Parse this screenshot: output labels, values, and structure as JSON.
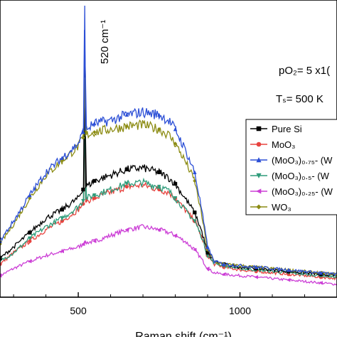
{
  "chart_data": {
    "type": "line",
    "xlabel": "Raman shift (cm⁻¹)",
    "ylabel": "",
    "xlim": [
      258,
      1300
    ],
    "ylim": [
      0,
      100
    ],
    "x_ticks": [
      500,
      1000
    ],
    "x_tick_labels": [
      "500",
      "1000"
    ],
    "peak_label": "520 cm⁻¹",
    "annotations": {
      "po2": "pO₂= 5 x1(",
      "ts": "Tₛ= 500 K"
    },
    "series": [
      {
        "name": "Pure Si",
        "color": "#000000",
        "marker": "square",
        "peak": 83,
        "x": [
          258,
          300,
          350,
          400,
          450,
          500,
          515,
          525,
          550,
          600,
          650,
          700,
          750,
          780,
          800,
          830,
          860,
          880,
          900,
          920,
          950,
          1000,
          1050,
          1100,
          1150,
          1200,
          1250,
          1300
        ],
        "y": [
          12,
          16,
          21,
          26,
          29,
          33,
          36,
          37,
          39,
          41,
          43,
          43.5,
          42,
          40,
          38,
          33,
          28,
          22,
          14,
          11,
          10,
          9,
          8.5,
          8,
          7.5,
          7,
          6.5,
          6
        ]
      },
      {
        "name": "MoO₃",
        "color": "#e8433f",
        "marker": "circle",
        "peak": 65,
        "x": [
          258,
          300,
          350,
          400,
          450,
          500,
          515,
          525,
          550,
          600,
          650,
          700,
          750,
          780,
          800,
          830,
          860,
          880,
          900,
          920,
          950,
          1000,
          1050,
          1100,
          1150,
          1200,
          1250,
          1300
        ],
        "y": [
          10,
          14,
          18,
          22,
          25,
          29,
          31,
          32,
          33,
          35,
          37,
          37.5,
          36,
          35,
          33,
          29,
          25,
          20,
          13,
          10,
          9,
          8,
          7.5,
          7,
          6.5,
          6,
          5.5,
          5
        ]
      },
      {
        "name": "(MoO₃)₀.₇₅- (W",
        "color": "#2c4fd6",
        "marker": "triangle-up",
        "peak": 100,
        "x": [
          258,
          300,
          350,
          400,
          450,
          500,
          515,
          525,
          550,
          600,
          650,
          700,
          750,
          780,
          800,
          830,
          860,
          880,
          900,
          920,
          950,
          1000,
          1050,
          1100,
          1150,
          1200,
          1250,
          1300
        ],
        "y": [
          18,
          25,
          34,
          42,
          47,
          52,
          56,
          57,
          59,
          60,
          62,
          63,
          62,
          60,
          57,
          50,
          42,
          30,
          16,
          11,
          10,
          9.5,
          9,
          8.5,
          8,
          7.5,
          7,
          6.5
        ]
      },
      {
        "name": "(MoO₃)₀.₅- (W",
        "color": "#2e9c7a",
        "marker": "triangle-down",
        "peak": 66,
        "x": [
          258,
          300,
          350,
          400,
          450,
          500,
          515,
          525,
          550,
          600,
          650,
          700,
          750,
          780,
          800,
          830,
          860,
          880,
          900,
          920,
          950,
          1000,
          1050,
          1100,
          1150,
          1200,
          1250,
          1300
        ],
        "y": [
          11,
          14,
          19,
          23,
          26,
          30,
          32,
          33,
          34,
          36,
          38,
          38.5,
          37,
          35.5,
          33,
          29,
          25,
          20,
          13,
          10.5,
          9.5,
          8.5,
          8,
          7.5,
          7,
          6.5,
          6,
          5.5
        ]
      },
      {
        "name": "(MoO₃)₀.₂₅- (W",
        "color": "#cc3fd6",
        "marker": "triangle-left",
        "peak": 18,
        "x": [
          258,
          300,
          350,
          400,
          450,
          500,
          515,
          525,
          550,
          600,
          650,
          700,
          750,
          780,
          800,
          830,
          860,
          880,
          900,
          920,
          950,
          1000,
          1050,
          1100,
          1150,
          1200,
          1250,
          1300
        ],
        "y": [
          6,
          8.5,
          11,
          13,
          14.5,
          16,
          17,
          17.5,
          18,
          20,
          22,
          23,
          22,
          21,
          20,
          18,
          15,
          12,
          8.5,
          7,
          6.5,
          6,
          5.5,
          5,
          4.5,
          4,
          3.5,
          3
        ]
      },
      {
        "name": "WO₃",
        "color": "#8c8c14",
        "marker": "diamond",
        "peak": 75,
        "x": [
          258,
          300,
          350,
          400,
          450,
          500,
          515,
          525,
          550,
          600,
          650,
          700,
          750,
          780,
          800,
          830,
          860,
          880,
          900,
          920,
          950,
          1000,
          1050,
          1100,
          1150,
          1200,
          1250,
          1300
        ],
        "y": [
          17,
          24,
          33,
          41,
          46,
          51,
          54,
          55,
          56,
          57,
          58,
          58.5,
          57,
          55,
          52,
          46,
          39,
          28,
          15,
          11,
          10,
          9.5,
          9,
          8.5,
          8,
          7.5,
          7,
          6.5
        ]
      }
    ]
  }
}
